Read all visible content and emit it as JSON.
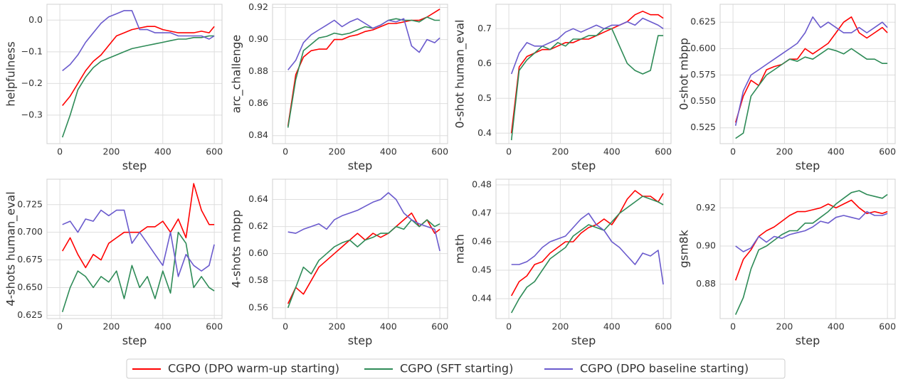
{
  "chart_data": [
    {
      "type": "line",
      "ylabel": "helpfulness",
      "xlabel": "step",
      "x": [
        10,
        40,
        70,
        100,
        130,
        160,
        190,
        220,
        250,
        280,
        310,
        340,
        370,
        400,
        430,
        460,
        490,
        520,
        550,
        580,
        600
      ],
      "xlim": [
        -50,
        630
      ],
      "xticks": [
        0,
        200,
        400,
        600
      ],
      "ylim": [
        -0.39,
        0.05
      ],
      "yticks": [
        {
          "value": -0.3,
          "label": "−0.3"
        },
        {
          "value": -0.2,
          "label": "−0.2"
        },
        {
          "value": -0.1,
          "label": "−0.1"
        },
        {
          "value": 0,
          "label": "0.0"
        }
      ],
      "grid": true,
      "series": [
        {
          "name": "CGPO (DPO warm-up starting)",
          "color": "#ff0000",
          "values": [
            -0.27,
            -0.24,
            -0.2,
            -0.16,
            -0.13,
            -0.11,
            -0.08,
            -0.05,
            -0.04,
            -0.03,
            -0.025,
            -0.02,
            -0.02,
            -0.03,
            -0.035,
            -0.04,
            -0.04,
            -0.04,
            -0.035,
            -0.04,
            -0.02
          ]
        },
        {
          "name": "CGPO (SFT starting)",
          "color": "#2e8b57",
          "values": [
            -0.37,
            -0.3,
            -0.22,
            -0.18,
            -0.15,
            -0.13,
            -0.12,
            -0.11,
            -0.1,
            -0.09,
            -0.085,
            -0.08,
            -0.075,
            -0.07,
            -0.065,
            -0.06,
            -0.06,
            -0.055,
            -0.055,
            -0.05,
            -0.05
          ]
        },
        {
          "name": "CGPO (DPO baseline starting)",
          "color": "#6a5acd",
          "values": [
            -0.16,
            -0.14,
            -0.11,
            -0.07,
            -0.04,
            -0.01,
            0.01,
            0.02,
            0.03,
            0.03,
            -0.03,
            -0.03,
            -0.04,
            -0.04,
            -0.04,
            -0.05,
            -0.05,
            -0.05,
            -0.05,
            -0.06,
            -0.05
          ]
        }
      ]
    },
    {
      "type": "line",
      "ylabel": "arc_challenge",
      "xlabel": "step",
      "x": [
        10,
        40,
        70,
        100,
        130,
        160,
        190,
        220,
        250,
        280,
        310,
        340,
        370,
        400,
        430,
        460,
        490,
        520,
        550,
        580,
        600
      ],
      "xlim": [
        -50,
        630
      ],
      "xticks": [
        0,
        200,
        400,
        600
      ],
      "ylim": [
        0.835,
        0.922
      ],
      "yticks": [
        0.84,
        0.86,
        0.88,
        {
          "value": 0.9,
          "label": "0.90"
        },
        0.92
      ],
      "grid": true,
      "series": [
        {
          "name": "CGPO (DPO warm-up starting)",
          "color": "#ff0000",
          "values": [
            0.846,
            0.878,
            0.889,
            0.893,
            0.894,
            0.894,
            0.9,
            0.9,
            0.902,
            0.903,
            0.905,
            0.906,
            0.908,
            0.91,
            0.91,
            0.911,
            0.912,
            0.912,
            0.914,
            0.917,
            0.919
          ]
        },
        {
          "name": "CGPO (SFT starting)",
          "color": "#2e8b57",
          "values": [
            0.845,
            0.875,
            0.893,
            0.897,
            0.901,
            0.902,
            0.904,
            0.903,
            0.904,
            0.906,
            0.908,
            0.907,
            0.909,
            0.912,
            0.913,
            0.912,
            0.912,
            0.911,
            0.914,
            0.912,
            0.912
          ]
        },
        {
          "name": "CGPO (DPO baseline starting)",
          "color": "#6a5acd",
          "values": [
            0.881,
            0.887,
            0.898,
            0.903,
            0.906,
            0.909,
            0.912,
            0.908,
            0.911,
            0.913,
            0.91,
            0.907,
            0.909,
            0.912,
            0.911,
            0.913,
            0.896,
            0.892,
            0.9,
            0.898,
            0.901
          ]
        }
      ]
    },
    {
      "type": "line",
      "ylabel": "0-shot human_eval",
      "xlabel": "step",
      "x": [
        10,
        40,
        70,
        100,
        130,
        160,
        190,
        220,
        250,
        280,
        310,
        340,
        370,
        400,
        430,
        460,
        490,
        520,
        550,
        580,
        600
      ],
      "xlim": [
        -50,
        630
      ],
      "xticks": [
        0,
        200,
        400,
        600
      ],
      "ylim": [
        0.37,
        0.77
      ],
      "yticks": [
        0.4,
        0.5,
        0.6,
        0.7
      ],
      "grid": true,
      "series": [
        {
          "name": "CGPO (DPO warm-up starting)",
          "color": "#ff0000",
          "values": [
            0.4,
            0.59,
            0.62,
            0.63,
            0.64,
            0.64,
            0.65,
            0.66,
            0.66,
            0.67,
            0.67,
            0.68,
            0.69,
            0.7,
            0.71,
            0.72,
            0.74,
            0.75,
            0.74,
            0.74,
            0.73
          ]
        },
        {
          "name": "CGPO (SFT starting)",
          "color": "#2e8b57",
          "values": [
            0.38,
            0.58,
            0.61,
            0.63,
            0.65,
            0.64,
            0.66,
            0.65,
            0.67,
            0.67,
            0.68,
            0.68,
            0.7,
            0.7,
            0.65,
            0.6,
            0.58,
            0.57,
            0.58,
            0.68,
            0.68
          ]
        },
        {
          "name": "CGPO (DPO baseline starting)",
          "color": "#6a5acd",
          "values": [
            0.57,
            0.63,
            0.66,
            0.65,
            0.65,
            0.66,
            0.67,
            0.69,
            0.7,
            0.69,
            0.7,
            0.71,
            0.7,
            0.71,
            0.71,
            0.72,
            0.71,
            0.73,
            0.72,
            0.71,
            0.7
          ]
        }
      ]
    },
    {
      "type": "line",
      "ylabel": "0-shot mbpp",
      "xlabel": "step",
      "x": [
        10,
        40,
        70,
        100,
        130,
        160,
        190,
        220,
        250,
        280,
        310,
        340,
        370,
        400,
        430,
        460,
        490,
        520,
        550,
        580,
        600
      ],
      "xlim": [
        -50,
        630
      ],
      "xticks": [
        0,
        200,
        400,
        600
      ],
      "ylim": [
        0.51,
        0.642
      ],
      "yticks": [
        0.525,
        {
          "value": 0.55,
          "label": "0.550"
        },
        0.575,
        {
          "value": 0.6,
          "label": "0.600"
        },
        0.625
      ],
      "grid": true,
      "series": [
        {
          "name": "CGPO (DPO warm-up starting)",
          "color": "#ff0000",
          "values": [
            0.53,
            0.555,
            0.57,
            0.565,
            0.58,
            0.583,
            0.585,
            0.59,
            0.59,
            0.6,
            0.595,
            0.6,
            0.605,
            0.615,
            0.625,
            0.63,
            0.615,
            0.61,
            0.615,
            0.62,
            0.615
          ]
        },
        {
          "name": "CGPO (SFT starting)",
          "color": "#2e8b57",
          "values": [
            0.515,
            0.52,
            0.555,
            0.565,
            0.575,
            0.58,
            0.585,
            0.59,
            0.588,
            0.592,
            0.59,
            0.595,
            0.6,
            0.598,
            0.595,
            0.6,
            0.595,
            0.59,
            0.59,
            0.586,
            0.586
          ]
        },
        {
          "name": "CGPO (DPO baseline starting)",
          "color": "#6a5acd",
          "values": [
            0.527,
            0.56,
            0.575,
            0.58,
            0.585,
            0.59,
            0.595,
            0.6,
            0.605,
            0.615,
            0.63,
            0.62,
            0.625,
            0.62,
            0.615,
            0.615,
            0.62,
            0.615,
            0.62,
            0.625,
            0.62
          ]
        }
      ]
    },
    {
      "type": "line",
      "ylabel": "4-shots human_eval",
      "xlabel": "step",
      "x": [
        10,
        40,
        70,
        100,
        130,
        160,
        190,
        220,
        250,
        280,
        310,
        340,
        370,
        400,
        430,
        460,
        490,
        520,
        550,
        580,
        600
      ],
      "xlim": [
        -50,
        630
      ],
      "xticks": [
        0,
        200,
        400,
        600
      ],
      "ylim": [
        0.622,
        0.748
      ],
      "yticks": [
        0.625,
        {
          "value": 0.65,
          "label": "0.650"
        },
        0.675,
        {
          "value": 0.7,
          "label": "0.700"
        },
        0.725
      ],
      "grid": true,
      "series": [
        {
          "name": "CGPO (DPO warm-up starting)",
          "color": "#ff0000",
          "values": [
            0.683,
            0.695,
            0.68,
            0.668,
            0.68,
            0.675,
            0.69,
            0.695,
            0.7,
            0.7,
            0.7,
            0.705,
            0.705,
            0.71,
            0.7,
            0.712,
            0.695,
            0.744,
            0.72,
            0.707,
            0.707
          ]
        },
        {
          "name": "CGPO (SFT starting)",
          "color": "#2e8b57",
          "values": [
            0.628,
            0.65,
            0.665,
            0.66,
            0.65,
            0.66,
            0.655,
            0.665,
            0.64,
            0.67,
            0.65,
            0.66,
            0.64,
            0.665,
            0.645,
            0.7,
            0.69,
            0.65,
            0.66,
            0.65,
            0.647
          ]
        },
        {
          "name": "CGPO (DPO baseline starting)",
          "color": "#6a5acd",
          "values": [
            0.707,
            0.71,
            0.7,
            0.712,
            0.71,
            0.72,
            0.715,
            0.72,
            0.72,
            0.69,
            0.7,
            0.69,
            0.68,
            0.67,
            0.7,
            0.66,
            0.68,
            0.67,
            0.665,
            0.67,
            0.689
          ]
        }
      ]
    },
    {
      "type": "line",
      "ylabel": "4-shots mbpp",
      "xlabel": "step",
      "x": [
        10,
        40,
        70,
        100,
        130,
        160,
        190,
        220,
        250,
        280,
        310,
        340,
        370,
        400,
        430,
        460,
        490,
        520,
        550,
        580,
        600
      ],
      "xlim": [
        -50,
        630
      ],
      "xticks": [
        0,
        200,
        400,
        600
      ],
      "ylim": [
        0.552,
        0.655
      ],
      "yticks": [
        0.56,
        0.58,
        {
          "value": 0.6,
          "label": "0.60"
        },
        0.62,
        0.64
      ],
      "grid": true,
      "series": [
        {
          "name": "CGPO (DPO warm-up starting)",
          "color": "#ff0000",
          "values": [
            0.563,
            0.575,
            0.57,
            0.58,
            0.59,
            0.595,
            0.6,
            0.605,
            0.61,
            0.615,
            0.61,
            0.615,
            0.612,
            0.615,
            0.62,
            0.625,
            0.63,
            0.62,
            0.625,
            0.615,
            0.618
          ]
        },
        {
          "name": "CGPO (SFT starting)",
          "color": "#2e8b57",
          "values": [
            0.56,
            0.575,
            0.59,
            0.585,
            0.595,
            0.6,
            0.605,
            0.608,
            0.61,
            0.605,
            0.61,
            0.612,
            0.615,
            0.615,
            0.62,
            0.618,
            0.625,
            0.62,
            0.625,
            0.62,
            0.622
          ]
        },
        {
          "name": "CGPO (DPO baseline starting)",
          "color": "#6a5acd",
          "values": [
            0.616,
            0.615,
            0.618,
            0.62,
            0.622,
            0.618,
            0.625,
            0.628,
            0.63,
            0.632,
            0.635,
            0.638,
            0.64,
            0.645,
            0.64,
            0.63,
            0.625,
            0.622,
            0.62,
            0.618,
            0.602
          ]
        }
      ]
    },
    {
      "type": "line",
      "ylabel": "math",
      "xlabel": "step",
      "x": [
        10,
        40,
        70,
        100,
        130,
        160,
        190,
        220,
        250,
        280,
        310,
        340,
        370,
        400,
        430,
        460,
        490,
        520,
        550,
        580,
        600
      ],
      "xlim": [
        -50,
        630
      ],
      "xticks": [
        0,
        200,
        400,
        600
      ],
      "ylim": [
        0.433,
        0.482
      ],
      "yticks": [
        0.44,
        0.45,
        0.46,
        0.47,
        0.48
      ],
      "grid": true,
      "series": [
        {
          "name": "CGPO (DPO warm-up starting)",
          "color": "#ff0000",
          "values": [
            0.441,
            0.446,
            0.448,
            0.452,
            0.453,
            0.456,
            0.458,
            0.46,
            0.46,
            0.463,
            0.465,
            0.466,
            0.468,
            0.466,
            0.47,
            0.475,
            0.478,
            0.476,
            0.476,
            0.474,
            0.477
          ]
        },
        {
          "name": "CGPO (SFT starting)",
          "color": "#2e8b57",
          "values": [
            0.435,
            0.44,
            0.444,
            0.446,
            0.45,
            0.454,
            0.456,
            0.458,
            0.462,
            0.464,
            0.466,
            0.465,
            0.464,
            0.467,
            0.47,
            0.472,
            0.474,
            0.476,
            0.475,
            0.474,
            0.473
          ]
        },
        {
          "name": "CGPO (DPO baseline starting)",
          "color": "#6a5acd",
          "values": [
            0.452,
            0.452,
            0.453,
            0.455,
            0.458,
            0.46,
            0.461,
            0.462,
            0.465,
            0.468,
            0.47,
            0.466,
            0.464,
            0.46,
            0.458,
            0.455,
            0.452,
            0.456,
            0.455,
            0.457,
            0.445
          ]
        }
      ]
    },
    {
      "type": "line",
      "ylabel": "gsm8k",
      "xlabel": "step",
      "x": [
        10,
        40,
        70,
        100,
        130,
        160,
        190,
        220,
        250,
        280,
        310,
        340,
        370,
        400,
        430,
        460,
        490,
        520,
        550,
        580,
        600
      ],
      "xlim": [
        -50,
        630
      ],
      "xticks": [
        0,
        200,
        400,
        600
      ],
      "ylim": [
        0.862,
        0.935
      ],
      "yticks": [
        0.88,
        {
          "value": 0.9,
          "label": "0.90"
        },
        0.92
      ],
      "grid": true,
      "series": [
        {
          "name": "CGPO (DPO warm-up starting)",
          "color": "#ff0000",
          "values": [
            0.882,
            0.893,
            0.898,
            0.905,
            0.908,
            0.91,
            0.913,
            0.916,
            0.918,
            0.918,
            0.919,
            0.92,
            0.922,
            0.92,
            0.922,
            0.924,
            0.92,
            0.917,
            0.918,
            0.917,
            0.918
          ]
        },
        {
          "name": "CGPO (SFT starting)",
          "color": "#2e8b57",
          "values": [
            0.864,
            0.873,
            0.888,
            0.898,
            0.9,
            0.903,
            0.906,
            0.908,
            0.908,
            0.912,
            0.912,
            0.915,
            0.918,
            0.922,
            0.925,
            0.928,
            0.929,
            0.927,
            0.926,
            0.925,
            0.927
          ]
        },
        {
          "name": "CGPO (DPO baseline starting)",
          "color": "#6a5acd",
          "values": [
            0.9,
            0.897,
            0.899,
            0.905,
            0.902,
            0.905,
            0.904,
            0.906,
            0.907,
            0.908,
            0.91,
            0.913,
            0.912,
            0.915,
            0.916,
            0.915,
            0.914,
            0.918,
            0.916,
            0.916,
            0.917
          ]
        }
      ]
    }
  ]
}
